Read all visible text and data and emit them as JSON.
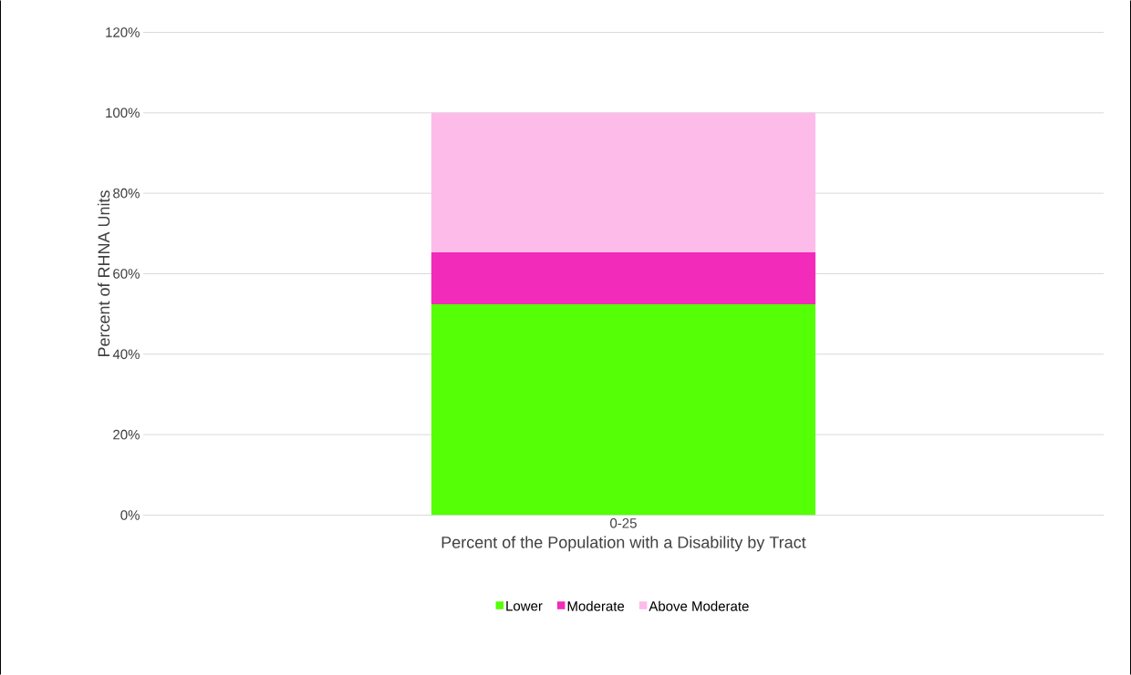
{
  "chart_data": {
    "type": "bar",
    "stacked": true,
    "xlabel": "Percent of the Population with a Disability by Tract",
    "ylabel": "Percent of RHNA Units",
    "categories": [
      "0-25"
    ],
    "series": [
      {
        "name": "Lower",
        "color": "#55ff05",
        "values": [
          52.4
        ]
      },
      {
        "name": "Moderate",
        "color": "#f22bbb",
        "values": [
          12.9
        ]
      },
      {
        "name": "Above Moderate",
        "color": "#fdbbea",
        "values": [
          34.7
        ]
      }
    ],
    "ylim": [
      0,
      120
    ],
    "yticks": [
      {
        "value": 0,
        "label": "0%"
      },
      {
        "value": 20,
        "label": "20%"
      },
      {
        "value": 40,
        "label": "40%"
      },
      {
        "value": 60,
        "label": "60%"
      },
      {
        "value": 80,
        "label": "80%"
      },
      {
        "value": 100,
        "label": "100%"
      },
      {
        "value": 120,
        "label": "120%"
      }
    ],
    "grid": "y",
    "legend": "bottom"
  }
}
